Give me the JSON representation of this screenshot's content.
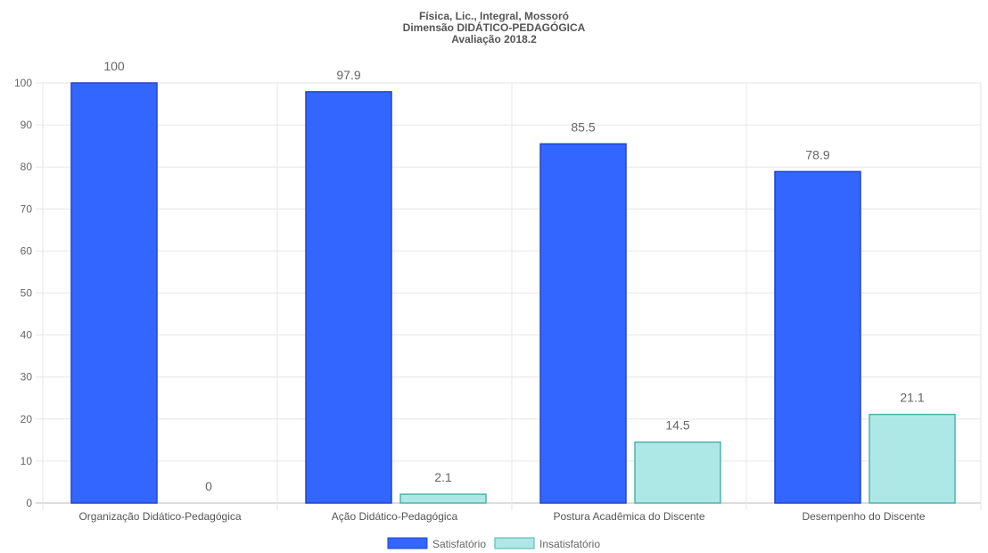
{
  "chart_data": {
    "type": "bar",
    "title": [
      "Física, Lic., Integral, Mossoró",
      "Dimensão DIDÁTICO-PEDAGÓGICA",
      "Avaliação 2018.2"
    ],
    "categories": [
      "Organização Didático-Pedagógica",
      "Ação Didático-Pedagógica",
      "Postura Acadêmica do Discente",
      "Desempenho do Discente"
    ],
    "series": [
      {
        "name": "Satisfatório",
        "values": [
          100,
          97.9,
          85.5,
          78.9
        ],
        "color": "#3366ff",
        "border": "#2244cc"
      },
      {
        "name": "Insatisfatório",
        "values": [
          0,
          2.1,
          14.5,
          21.1
        ],
        "color": "#aee8e6",
        "border": "#4fb3ae"
      }
    ],
    "ylim": [
      0,
      100
    ],
    "yticks": [
      0,
      10,
      20,
      30,
      40,
      50,
      60,
      70,
      80,
      90,
      100
    ],
    "grid": true,
    "legend": "bottom",
    "xlabel": "",
    "ylabel": ""
  }
}
